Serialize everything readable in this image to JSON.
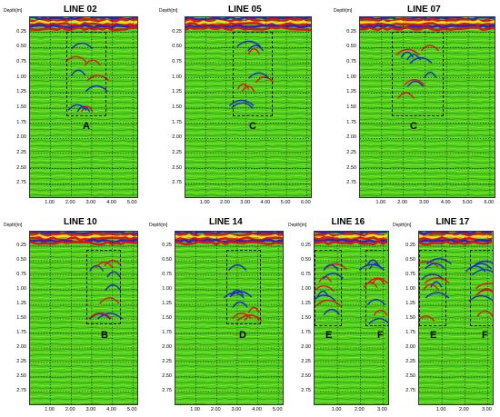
{
  "colors": {
    "background": "#4fd11d",
    "stripe_light": "#9be63a",
    "stripe_dark": "#2f8f0f",
    "band_red": "#e3160f",
    "band_blue": "#1a26d8",
    "band_yellow": "#f2e20b",
    "grid": "#111111"
  },
  "depth_ticks": [
    "0.25",
    "0.50",
    "0.75",
    "1.00",
    "1.25",
    "1.50",
    "1.75",
    "2.00",
    "2.25",
    "2.50",
    "2.75"
  ],
  "panels": [
    {
      "title": "LINE 02",
      "axis_label": "Depth[m]",
      "x_ticks": [
        "1.00",
        "2.00",
        "3.00",
        "4.00",
        "5.00"
      ],
      "zones": [
        "A"
      ]
    },
    {
      "title": "LINE 05",
      "axis_label": "Depth[m]",
      "x_ticks": [
        "1.00",
        "2.00",
        "3.00",
        "4.00",
        "5.00",
        "6.00"
      ],
      "zones": [
        "C"
      ]
    },
    {
      "title": "LINE 07",
      "axis_label": "Depth[m]",
      "x_ticks": [
        "1.00",
        "2.00",
        "3.00",
        "4.00",
        "5.00",
        "6.00"
      ],
      "zones": [
        "C"
      ]
    },
    {
      "title": "LINE 10",
      "axis_label": "Depth[m]",
      "x_ticks": [
        "1.00",
        "2.00",
        "3.00",
        "4.00",
        "5.00"
      ],
      "zones": [
        "B"
      ]
    },
    {
      "title": "LINE 14",
      "axis_label": "Depth[m]",
      "x_ticks": [
        "1.00",
        "2.00",
        "3.00",
        "4.00",
        "5.00"
      ],
      "zones": [
        "D"
      ]
    },
    {
      "title": "LINE 16",
      "axis_label": "Depth[m]",
      "x_ticks": [
        "1.00",
        "2.00",
        "3.00"
      ],
      "zones": [
        "E",
        "F"
      ]
    },
    {
      "title": "LINE 17",
      "axis_label": "Depth[m]",
      "x_ticks": [
        "1.00",
        "2.00",
        "3.00"
      ],
      "zones": [
        "E",
        "F"
      ]
    }
  ]
}
